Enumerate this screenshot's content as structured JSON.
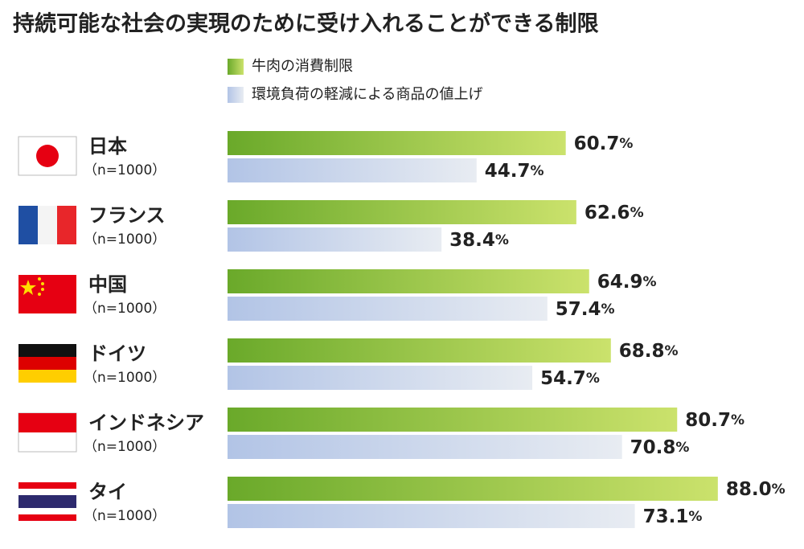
{
  "chart_data": {
    "type": "bar",
    "orientation": "horizontal",
    "title": "持続可能な社会の実現のために受け入れることができる制限",
    "categories": [
      "日本",
      "フランス",
      "中国",
      "ドイツ",
      "インドネシア",
      "タイ"
    ],
    "category_notes": [
      "（n=1000）",
      "（n=1000）",
      "（n=1000）",
      "（n=1000）",
      "（n=1000）",
      "（n=1000）"
    ],
    "xlim": [
      0,
      100
    ],
    "series": [
      {
        "name": "牛肉の消費制限",
        "color": "#6aa92a",
        "values": [
          60.7,
          62.6,
          64.9,
          68.8,
          80.7,
          88.0
        ],
        "value_labels": [
          "60.7%",
          "62.6%",
          "64.9%",
          "68.8%",
          "80.7%",
          "88.0%"
        ]
      },
      {
        "name": "環境負荷の軽減による商品の値上げ",
        "color": "#b2c4e6",
        "values": [
          44.7,
          38.4,
          57.4,
          54.7,
          70.8,
          73.1
        ],
        "value_labels": [
          "44.7%",
          "38.4%",
          "57.4%",
          "54.7%",
          "70.8%",
          "73.1%"
        ]
      }
    ]
  }
}
